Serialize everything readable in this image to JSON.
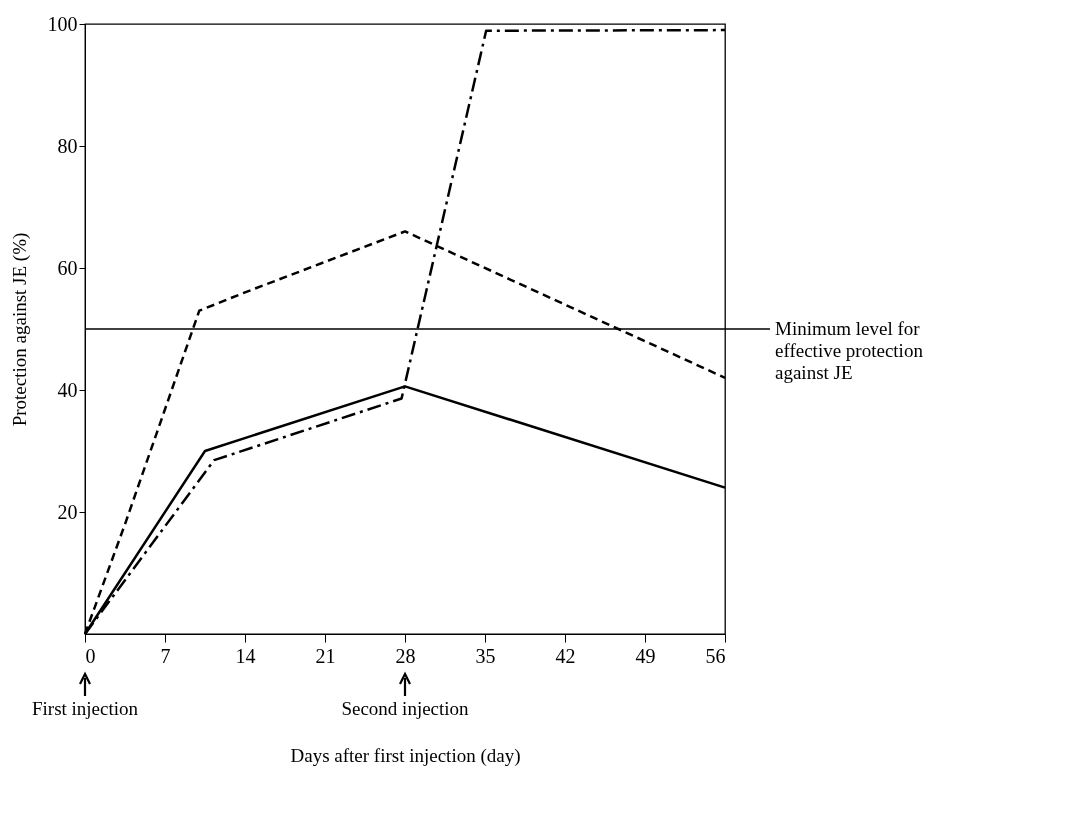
{
  "chart_data": {
    "type": "line",
    "xlabel": "Days after first injection (day)",
    "ylabel": "Protection against JE (%)",
    "xlim": [
      0,
      56
    ],
    "xticks": [
      0,
      7,
      14,
      21,
      28,
      35,
      42,
      49,
      56
    ],
    "ylim": [
      0,
      100
    ],
    "yticks": [
      20,
      40,
      60,
      80,
      100
    ],
    "grid": false,
    "marker": "none",
    "series": [
      {
        "color": "#000000",
        "line_style": "solid",
        "x": [
          0,
          10.5,
          28,
          56
        ],
        "values": [
          0,
          30,
          40.6,
          24
        ]
      },
      {
        "color": "#000000",
        "line_style": "dashed",
        "x": [
          0,
          3.5,
          10,
          14,
          28,
          56
        ],
        "values": [
          0,
          18,
          53,
          56,
          66,
          42
        ]
      },
      {
        "color": "#000000",
        "line_style": "dashdot",
        "x": [
          0,
          11.3,
          27.7,
          35.1,
          56
        ],
        "values": [
          0,
          28.5,
          38.6,
          98.9,
          99
        ]
      }
    ],
    "ref_lines": [
      {
        "axis": "y",
        "value": 50,
        "label": "Minimum level for effective protection against JE",
        "color": "#000000"
      }
    ],
    "legend": false,
    "annotations": [
      "First injection",
      "Second injection"
    ]
  }
}
